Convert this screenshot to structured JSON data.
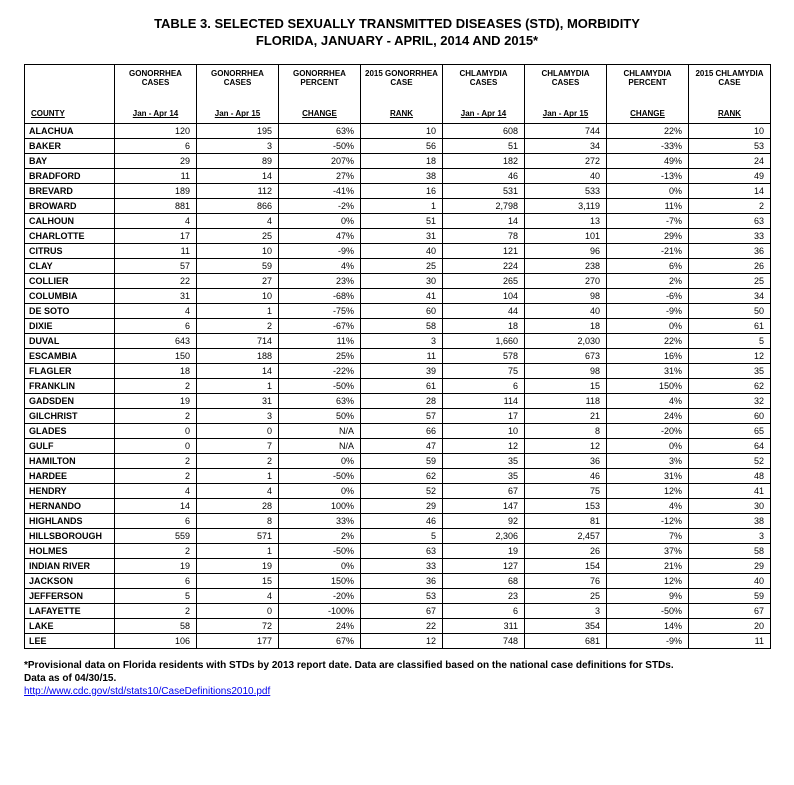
{
  "title_line1": "TABLE 3. SELECTED SEXUALLY TRANSMITTED DISEASES (STD), MORBIDITY",
  "title_line2": "FLORIDA, JANUARY - APRIL, 2014 AND 2015*",
  "columns": [
    {
      "top": "",
      "bot": "COUNTY"
    },
    {
      "top": "GONORRHEA CASES",
      "bot": "Jan - Apr 14"
    },
    {
      "top": "GONORRHEA CASES",
      "bot": "Jan - Apr 15"
    },
    {
      "top": "GONORRHEA PERCENT",
      "bot": "CHANGE"
    },
    {
      "top": "2015 GONORRHEA CASE",
      "bot": "RANK"
    },
    {
      "top": "CHLAMYDIA CASES",
      "bot": "Jan - Apr 14"
    },
    {
      "top": "CHLAMYDIA CASES",
      "bot": "Jan - Apr 15"
    },
    {
      "top": "CHLAMYDIA PERCENT",
      "bot": "CHANGE"
    },
    {
      "top": "2015 CHLAMYDIA CASE",
      "bot": "RANK"
    }
  ],
  "rows": [
    [
      "ALACHUA",
      "120",
      "195",
      "63%",
      "10",
      "608",
      "744",
      "22%",
      "10"
    ],
    [
      "BAKER",
      "6",
      "3",
      "-50%",
      "56",
      "51",
      "34",
      "-33%",
      "53"
    ],
    [
      "BAY",
      "29",
      "89",
      "207%",
      "18",
      "182",
      "272",
      "49%",
      "24"
    ],
    [
      "BRADFORD",
      "11",
      "14",
      "27%",
      "38",
      "46",
      "40",
      "-13%",
      "49"
    ],
    [
      "BREVARD",
      "189",
      "112",
      "-41%",
      "16",
      "531",
      "533",
      "0%",
      "14"
    ],
    [
      "BROWARD",
      "881",
      "866",
      "-2%",
      "1",
      "2,798",
      "3,119",
      "11%",
      "2"
    ],
    [
      "CALHOUN",
      "4",
      "4",
      "0%",
      "51",
      "14",
      "13",
      "-7%",
      "63"
    ],
    [
      "CHARLOTTE",
      "17",
      "25",
      "47%",
      "31",
      "78",
      "101",
      "29%",
      "33"
    ],
    [
      "CITRUS",
      "11",
      "10",
      "-9%",
      "40",
      "121",
      "96",
      "-21%",
      "36"
    ],
    [
      "CLAY",
      "57",
      "59",
      "4%",
      "25",
      "224",
      "238",
      "6%",
      "26"
    ],
    [
      "COLLIER",
      "22",
      "27",
      "23%",
      "30",
      "265",
      "270",
      "2%",
      "25"
    ],
    [
      "COLUMBIA",
      "31",
      "10",
      "-68%",
      "41",
      "104",
      "98",
      "-6%",
      "34"
    ],
    [
      "DE SOTO",
      "4",
      "1",
      "-75%",
      "60",
      "44",
      "40",
      "-9%",
      "50"
    ],
    [
      "DIXIE",
      "6",
      "2",
      "-67%",
      "58",
      "18",
      "18",
      "0%",
      "61"
    ],
    [
      "DUVAL",
      "643",
      "714",
      "11%",
      "3",
      "1,660",
      "2,030",
      "22%",
      "5"
    ],
    [
      "ESCAMBIA",
      "150",
      "188",
      "25%",
      "11",
      "578",
      "673",
      "16%",
      "12"
    ],
    [
      "FLAGLER",
      "18",
      "14",
      "-22%",
      "39",
      "75",
      "98",
      "31%",
      "35"
    ],
    [
      "FRANKLIN",
      "2",
      "1",
      "-50%",
      "61",
      "6",
      "15",
      "150%",
      "62"
    ],
    [
      "GADSDEN",
      "19",
      "31",
      "63%",
      "28",
      "114",
      "118",
      "4%",
      "32"
    ],
    [
      "GILCHRIST",
      "2",
      "3",
      "50%",
      "57",
      "17",
      "21",
      "24%",
      "60"
    ],
    [
      "GLADES",
      "0",
      "0",
      "N/A",
      "66",
      "10",
      "8",
      "-20%",
      "65"
    ],
    [
      "GULF",
      "0",
      "7",
      "N/A",
      "47",
      "12",
      "12",
      "0%",
      "64"
    ],
    [
      "HAMILTON",
      "2",
      "2",
      "0%",
      "59",
      "35",
      "36",
      "3%",
      "52"
    ],
    [
      "HARDEE",
      "2",
      "1",
      "-50%",
      "62",
      "35",
      "46",
      "31%",
      "48"
    ],
    [
      "HENDRY",
      "4",
      "4",
      "0%",
      "52",
      "67",
      "75",
      "12%",
      "41"
    ],
    [
      "HERNANDO",
      "14",
      "28",
      "100%",
      "29",
      "147",
      "153",
      "4%",
      "30"
    ],
    [
      "HIGHLANDS",
      "6",
      "8",
      "33%",
      "46",
      "92",
      "81",
      "-12%",
      "38"
    ],
    [
      "HILLSBOROUGH",
      "559",
      "571",
      "2%",
      "5",
      "2,306",
      "2,457",
      "7%",
      "3"
    ],
    [
      "HOLMES",
      "2",
      "1",
      "-50%",
      "63",
      "19",
      "26",
      "37%",
      "58"
    ],
    [
      "INDIAN RIVER",
      "19",
      "19",
      "0%",
      "33",
      "127",
      "154",
      "21%",
      "29"
    ],
    [
      "JACKSON",
      "6",
      "15",
      "150%",
      "36",
      "68",
      "76",
      "12%",
      "40"
    ],
    [
      "JEFFERSON",
      "5",
      "4",
      "-20%",
      "53",
      "23",
      "25",
      "9%",
      "59"
    ],
    [
      "LAFAYETTE",
      "2",
      "0",
      "-100%",
      "67",
      "6",
      "3",
      "-50%",
      "67"
    ],
    [
      "LAKE",
      "58",
      "72",
      "24%",
      "22",
      "311",
      "354",
      "14%",
      "20"
    ],
    [
      "LEE",
      "106",
      "177",
      "67%",
      "12",
      "748",
      "681",
      "-9%",
      "11"
    ]
  ],
  "footnote_line1": "*Provisional data on Florida residents with STDs by 2013 report date. Data are classified based on the national case definitions for STDs.",
  "footnote_line2": "Data as of 04/30/15.",
  "footnote_link": "http://www.cdc.gov/std/stats10/CaseDefinitions2010.pdf"
}
